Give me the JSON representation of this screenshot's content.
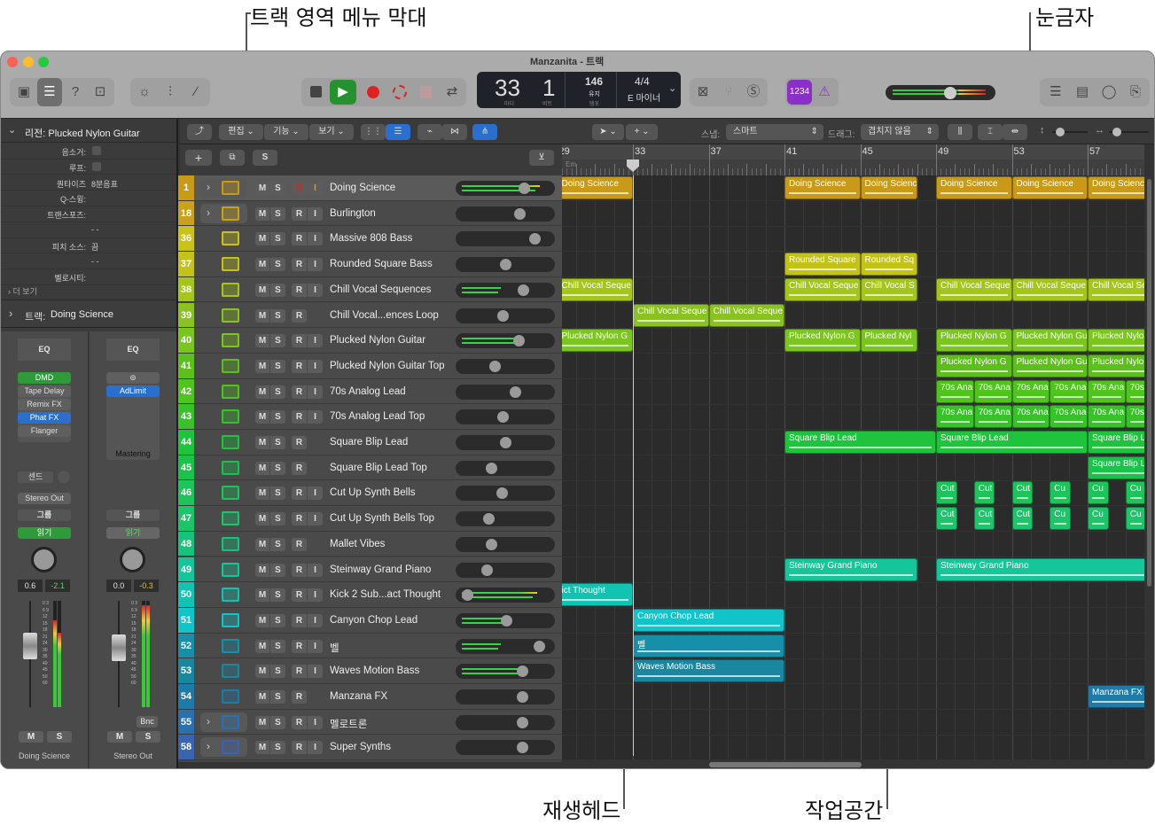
{
  "annotations": {
    "menu_bar": "트랙 영역 메뉴 막대",
    "ruler": "눈금자",
    "playhead": "재생헤드",
    "workspace": "작업공간"
  },
  "window": {
    "title": "Manzanita - 트랙"
  },
  "lcd": {
    "bar": "33",
    "beat": "1",
    "bar_label": "마디",
    "beat_label": "비트",
    "tempo": "146",
    "tempo_mode": "유지",
    "tempo_label": "템포",
    "signature": "4/4",
    "key": "E 마이너"
  },
  "count_in": "1234",
  "master_volume": 0.62,
  "inspector": {
    "region_title": "리전: Plucked Nylon Guitar",
    "rows": [
      {
        "label": "음소거:",
        "value": ""
      },
      {
        "label": "루프:",
        "value": ""
      },
      {
        "label": "퀀타이즈",
        "value": "8분음표"
      },
      {
        "label": "Q-스윙:",
        "value": ""
      },
      {
        "label": "트랜스포즈:",
        "value": ""
      },
      {
        "label": "",
        "value": "- -"
      },
      {
        "label": "피치 소스:",
        "value": "끔"
      },
      {
        "label": "",
        "value": "- -"
      },
      {
        "label": "벨로시티:",
        "value": ""
      }
    ],
    "more": "더 보기",
    "track_title": "트랙:",
    "track_name": "Doing Science"
  },
  "strips": [
    {
      "eq": "EQ",
      "midi_fx": "DMD",
      "plugins": [
        "Tape Delay",
        "Remix FX",
        "Phat FX",
        "Flanger"
      ],
      "send": "센드",
      "output": "Stereo Out",
      "group": "그룹",
      "automation": "읽기",
      "pan": "0.6",
      "level": "-2.1",
      "name": "Doing Science",
      "mute": "M",
      "solo": "S",
      "meter": [
        0.82,
        0.7
      ],
      "fader": 0.7
    },
    {
      "eq": "EQ",
      "plugins": [
        "AdLimit"
      ],
      "slot_label": "Mastering",
      "group": "그룹",
      "automation": "읽기",
      "pan": "0.0",
      "level": "-0.3",
      "name": "Stereo Out",
      "bounce": "Bnc",
      "mute": "M",
      "solo": "S",
      "meter": [
        0.96,
        0.96
      ],
      "fader": 0.68
    }
  ],
  "menu": {
    "edit": "편집",
    "functions": "기능",
    "view": "보기",
    "snap_label": "스냅:",
    "snap": "스마트",
    "drag_label": "드래그:",
    "drag": "겹치지 않음"
  },
  "ruler": {
    "bars": [
      "29",
      "33",
      "37",
      "41",
      "45",
      "49",
      "53",
      "57"
    ],
    "key": "Em"
  },
  "track_buttons": {
    "mute": "M",
    "solo": "S",
    "record": "R",
    "input": "I"
  },
  "tracks": [
    {
      "num": "1",
      "name": "Doing Science",
      "color": "#c99a17",
      "folder": true,
      "icon": "drum-machine-icon",
      "input": true,
      "armed": true,
      "volume": 0.72,
      "meter": 0.9,
      "selected": true,
      "regions": [
        {
          "label": "Doing Science",
          "start": 29,
          "end": 33
        },
        {
          "label": "Doing Science",
          "start": 41,
          "end": 45
        },
        {
          "label": "Doing Science",
          "start": 45,
          "end": 48
        },
        {
          "label": "Doing Science",
          "start": 49,
          "end": 53
        },
        {
          "label": "Doing Science",
          "start": 53,
          "end": 57
        },
        {
          "label": "Doing Science",
          "start": 57,
          "end": 61
        }
      ]
    },
    {
      "num": "18",
      "name": "Burlington",
      "color": "#c9a11a",
      "folder": true,
      "icon": "drum-machine-icon",
      "input": true,
      "volume": 0.67,
      "regions": []
    },
    {
      "num": "36",
      "name": "Massive 808 Bass",
      "color": "#c9c318",
      "icon": "synth-icon",
      "input": true,
      "volume": 0.84,
      "regions": []
    },
    {
      "num": "37",
      "name": "Rounded Square Bass",
      "color": "#c2c218",
      "icon": "synth-icon",
      "input": true,
      "volume": 0.5,
      "regions": [
        {
          "label": "Rounded Square",
          "start": 41,
          "end": 45
        },
        {
          "label": "Rounded Sq",
          "start": 45,
          "end": 48
        }
      ]
    },
    {
      "num": "38",
      "name": "Chill Vocal Sequences",
      "color": "#a4c61b",
      "icon": "synth-icon",
      "input": true,
      "volume": 0.71,
      "meter": 0.45,
      "regions": [
        {
          "label": "Chill Vocal Seque",
          "start": 29,
          "end": 33
        },
        {
          "label": "Chill Vocal Seque",
          "start": 41,
          "end": 45
        },
        {
          "label": "Chill Vocal S",
          "start": 45,
          "end": 48
        },
        {
          "label": "Chill Vocal Seque",
          "start": 49,
          "end": 53
        },
        {
          "label": "Chill Vocal Seque",
          "start": 53,
          "end": 57
        },
        {
          "label": "Chill Vocal Se",
          "start": 57,
          "end": 61
        }
      ]
    },
    {
      "num": "39",
      "name": "Chill Vocal...ences Loop",
      "color": "#8ac21f",
      "icon": "synth-icon",
      "input": false,
      "volume": 0.47,
      "regions": [
        {
          "label": "Chill Vocal Seque",
          "start": 33,
          "end": 37
        },
        {
          "label": "Chill Vocal Seque",
          "start": 37,
          "end": 41
        }
      ]
    },
    {
      "num": "40",
      "name": "Plucked Nylon Guitar",
      "color": "#7ac61f",
      "icon": "keyboard-stand-icon",
      "input": true,
      "volume": 0.66,
      "meter": 0.65,
      "regions": [
        {
          "label": "Plucked Nylon G",
          "start": 29,
          "end": 33
        },
        {
          "label": "Plucked Nylon G",
          "start": 41,
          "end": 45
        },
        {
          "label": "Plucked Nyl",
          "start": 45,
          "end": 48
        },
        {
          "label": "Plucked Nylon G",
          "start": 49,
          "end": 53
        },
        {
          "label": "Plucked Nylon Gu",
          "start": 53,
          "end": 57
        },
        {
          "label": "Plucked Nylo",
          "start": 57,
          "end": 61
        }
      ]
    },
    {
      "num": "41",
      "name": "Plucked Nylon Guitar Top",
      "color": "#5cbf1c",
      "icon": "keyboard-stand-icon",
      "input": true,
      "volume": 0.38,
      "regions": [
        {
          "label": "Plucked Nylon G",
          "start": 49,
          "end": 53
        },
        {
          "label": "Plucked Nylon Gu",
          "start": 53,
          "end": 57
        },
        {
          "label": "Plucked Nylo",
          "start": 57,
          "end": 61
        }
      ]
    },
    {
      "num": "42",
      "name": "70s Analog Lead",
      "color": "#4ec41c",
      "icon": "keyboard-stand-icon",
      "input": true,
      "volume": 0.62,
      "regions": [
        {
          "label": "70s Ana",
          "start": 49,
          "end": 51
        },
        {
          "label": "70s Ana",
          "start": 51,
          "end": 53
        },
        {
          "label": "70s Ana",
          "start": 53,
          "end": 55
        },
        {
          "label": "70s Ana",
          "start": 55,
          "end": 57
        },
        {
          "label": "70s Ana",
          "start": 57,
          "end": 59
        },
        {
          "label": "70s Ana",
          "start": 59,
          "end": 61
        }
      ]
    },
    {
      "num": "43",
      "name": "70s Analog Lead Top",
      "color": "#36c228",
      "icon": "keyboard-stand-icon",
      "input": true,
      "volume": 0.47,
      "regions": [
        {
          "label": "70s Ana",
          "start": 49,
          "end": 51
        },
        {
          "label": "70s Ana",
          "start": 51,
          "end": 53
        },
        {
          "label": "70s Ana",
          "start": 53,
          "end": 55
        },
        {
          "label": "70s Ana",
          "start": 55,
          "end": 57
        },
        {
          "label": "70s Ana",
          "start": 57,
          "end": 59
        },
        {
          "label": "70s Ana",
          "start": 59,
          "end": 61
        }
      ]
    },
    {
      "num": "44",
      "name": "Square Blip Lead",
      "color": "#1ec43c",
      "icon": "synth-icon",
      "input": false,
      "volume": 0.51,
      "regions": [
        {
          "label": "Square Blip Lead",
          "start": 41,
          "end": 49
        },
        {
          "label": "Square Blip Lead",
          "start": 49,
          "end": 57
        },
        {
          "label": "Square Blip L",
          "start": 57,
          "end": 61
        }
      ]
    },
    {
      "num": "45",
      "name": "Square Blip Lead Top",
      "color": "#19c34a",
      "icon": "synth-icon",
      "input": false,
      "volume": 0.34,
      "regions": [
        {
          "label": "Square Blip L",
          "start": 57,
          "end": 61
        }
      ]
    },
    {
      "num": "46",
      "name": "Cut Up Synth Bells",
      "color": "#1cc45a",
      "icon": "synth-icon",
      "input": true,
      "volume": 0.46,
      "regions": [
        {
          "label": "Cut",
          "start": 49,
          "end": 50.1
        },
        {
          "label": "Cut",
          "start": 51,
          "end": 52.1
        },
        {
          "label": "Cut",
          "start": 53,
          "end": 54.1
        },
        {
          "label": "Cu",
          "start": 55,
          "end": 56.1
        },
        {
          "label": "Cu",
          "start": 57,
          "end": 58.1
        },
        {
          "label": "Cu",
          "start": 59,
          "end": 60.1
        }
      ]
    },
    {
      "num": "47",
      "name": "Cut Up Synth Bells Top",
      "color": "#1cc46a",
      "icon": "synth-icon",
      "input": true,
      "volume": 0.31,
      "regions": [
        {
          "label": "Cut",
          "start": 49,
          "end": 50.1
        },
        {
          "label": "Cut",
          "start": 51,
          "end": 52.1
        },
        {
          "label": "Cut",
          "start": 53,
          "end": 54.1
        },
        {
          "label": "Cu",
          "start": 55,
          "end": 56.1
        },
        {
          "label": "Cu",
          "start": 57,
          "end": 58.1
        },
        {
          "label": "Cu",
          "start": 59,
          "end": 60.1
        }
      ]
    },
    {
      "num": "48",
      "name": "Mallet Vibes",
      "color": "#17c27c",
      "icon": "synth-icon",
      "input": false,
      "volume": 0.34,
      "regions": []
    },
    {
      "num": "49",
      "name": "Steinway Grand Piano",
      "color": "#14c69a",
      "icon": "grand-piano-icon",
      "input": true,
      "volume": 0.29,
      "regions": [
        {
          "label": "Steinway Grand Piano",
          "start": 41,
          "end": 48
        },
        {
          "label": "Steinway Grand Piano",
          "start": 49,
          "end": 61
        }
      ]
    },
    {
      "num": "50",
      "name": "Kick 2 Sub...act Thought",
      "color": "#11c3b3",
      "icon": "drum-icon",
      "input": true,
      "volume": 0.07,
      "meter": 0.87,
      "regions": [
        {
          "label": "ict Thought",
          "start": 29,
          "end": 33
        }
      ]
    },
    {
      "num": "51",
      "name": "Canyon Chop Lead",
      "color": "#10c4c9",
      "icon": "sampler-icon",
      "input": true,
      "volume": 0.52,
      "meter": 0.5,
      "regions": [
        {
          "label": "Canyon Chop Lead",
          "start": 33,
          "end": 41
        }
      ]
    },
    {
      "num": "52",
      "name": "벨",
      "color": "#178fa8",
      "icon": "sampler-icon",
      "input": true,
      "volume": 0.89,
      "meter": 0.45,
      "regions": [
        {
          "label": "벨",
          "start": 33,
          "end": 41
        }
      ]
    },
    {
      "num": "53",
      "name": "Waves Motion Bass",
      "color": "#1a87a0",
      "icon": "synth-icon",
      "input": true,
      "volume": 0.7,
      "meter": 0.68,
      "regions": [
        {
          "label": "Waves Motion Bass",
          "start": 33,
          "end": 41
        }
      ]
    },
    {
      "num": "54",
      "name": "Manzana FX",
      "color": "#1e7aa8",
      "icon": "fx-icon",
      "input": false,
      "volume": 0.7,
      "regions": [
        {
          "label": "Manzana FX",
          "start": 57,
          "end": 61
        }
      ]
    },
    {
      "num": "55",
      "name": "멜로트론",
      "color": "#2a6fae",
      "folder": true,
      "icon": "mellotron-icon",
      "input": true,
      "volume": 0.7,
      "regions": []
    },
    {
      "num": "58",
      "name": "Super Synths",
      "color": "#3a64b0",
      "folder": true,
      "icon": "synth-icon",
      "input": true,
      "volume": 0.7,
      "regions": []
    }
  ]
}
